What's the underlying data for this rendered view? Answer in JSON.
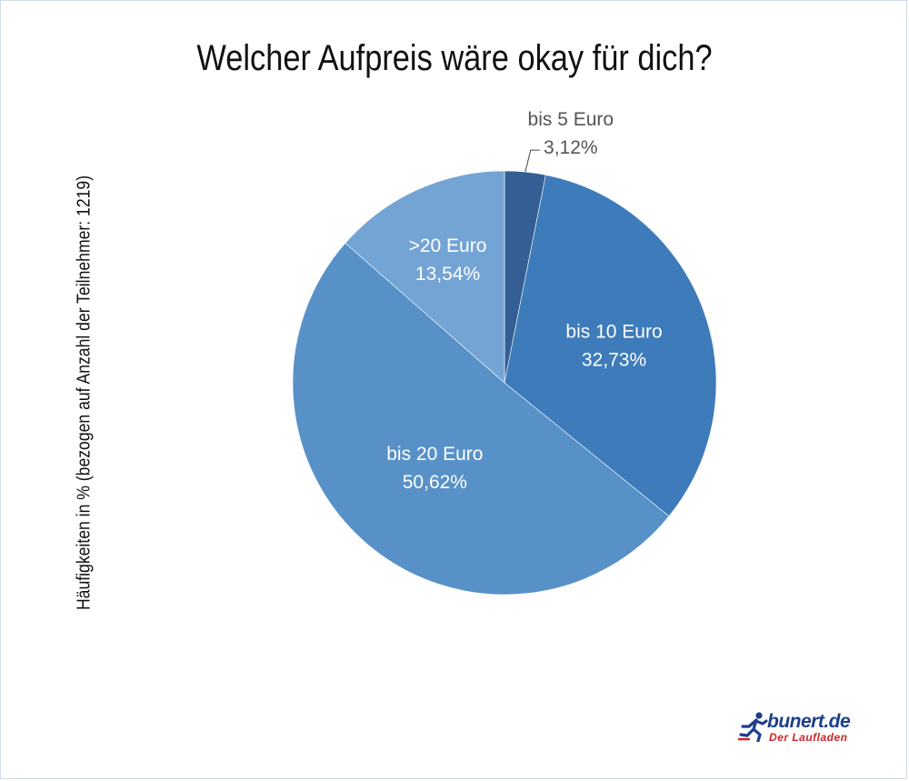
{
  "chart_data": {
    "type": "pie",
    "title": "Welcher Aufpreis wäre okay für dich?",
    "ylabel": "Häufigkeiten in % (bezogen auf Anzahl der Teilnehmer: 1219)",
    "slices": [
      {
        "label": "bis 5 Euro",
        "value": 3.12,
        "value_text": "3,12%",
        "color": "#335f94"
      },
      {
        "label": "bis 10 Euro",
        "value": 32.73,
        "value_text": "32,73%",
        "color": "#3e7bba"
      },
      {
        "label": "bis 20 Euro",
        "value": 50.62,
        "value_text": "50,62%",
        "color": "#5791c8"
      },
      {
        "label": ">20 Euro",
        "value": 13.54,
        "value_text": "13,54%",
        "color": "#74a4d4"
      }
    ]
  },
  "logo": {
    "brand": "bunert.de",
    "tagline": "Der Laufladen",
    "brand_color": "#1d3f8c",
    "tagline_color": "#d4232a",
    "icon": "runner-icon"
  }
}
